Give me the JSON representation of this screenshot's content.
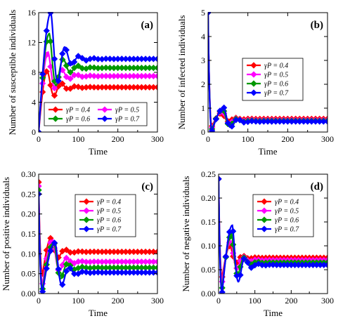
{
  "chart_data": [
    {
      "type": "line",
      "panel_label": "(a)",
      "xlabel": "Time",
      "ylabel": "Number of susceptible individuals",
      "xlim": [
        0,
        300
      ],
      "ylim": [
        0,
        16
      ],
      "xticks": [
        0,
        100,
        200,
        300
      ],
      "yticks": [
        0,
        4,
        8,
        12,
        16
      ],
      "legend_position": "bottom",
      "legend": [
        "γP = 0.4",
        "γP = 0.5",
        "γP = 0.6",
        "γP = 0.7"
      ],
      "series": [
        {
          "name": "γP = 0.4",
          "color": "#ff0000",
          "eq": 6.0,
          "peak": 8.2,
          "peak_t": 22,
          "trough": 5.0,
          "osc": 0.6
        },
        {
          "name": "γP = 0.5",
          "color": "#ff00ff",
          "eq": 7.5,
          "peak": 10.7,
          "peak_t": 24,
          "trough": 5.4,
          "osc": 0.75
        },
        {
          "name": "γP = 0.6",
          "color": "#009900",
          "eq": 8.6,
          "peak": 13.2,
          "peak_t": 27,
          "trough": 5.6,
          "osc": 0.95
        },
        {
          "name": "γP = 0.7",
          "color": "#0000ff",
          "eq": 9.8,
          "peak": 16.0,
          "peak_t": 31,
          "trough": 5.8,
          "osc": 1.2
        }
      ]
    },
    {
      "type": "line",
      "panel_label": "(b)",
      "xlabel": "Time",
      "ylabel": "Number of infected individuals",
      "xlim": [
        0,
        300
      ],
      "ylim": [
        0,
        5
      ],
      "xticks": [
        0,
        100,
        200,
        300
      ],
      "yticks": [
        0,
        1,
        2,
        3,
        4,
        5
      ],
      "legend_position": "center",
      "legend": [
        "γP = 0.4",
        "γP = 0.5",
        "γP = 0.6",
        "γP = 0.7"
      ],
      "series": [
        {
          "name": "γP = 0.4",
          "color": "#ff0000",
          "start": 5,
          "eq": 0.55,
          "trough": 0.25,
          "peak": 0.8,
          "peak_t": 35
        },
        {
          "name": "γP = 0.5",
          "color": "#ff00ff",
          "start": 5,
          "eq": 0.5,
          "trough": 0.18,
          "peak": 0.88,
          "peak_t": 37
        },
        {
          "name": "γP = 0.6",
          "color": "#009900",
          "start": 5,
          "eq": 0.47,
          "trough": 0.12,
          "peak": 0.95,
          "peak_t": 38
        },
        {
          "name": "γP = 0.7",
          "color": "#0000ff",
          "start": 5,
          "eq": 0.44,
          "trough": 0.05,
          "peak": 1.02,
          "peak_t": 40
        }
      ]
    },
    {
      "type": "line",
      "panel_label": "(c)",
      "xlabel": "Time",
      "ylabel": "Number of positive individuals",
      "xlim": [
        0,
        300
      ],
      "ylim": [
        0,
        0.3
      ],
      "xticks": [
        0,
        100,
        200,
        300
      ],
      "yticks": [
        0.0,
        0.05,
        0.1,
        0.15,
        0.2,
        0.25,
        0.3
      ],
      "ytick_labels": [
        "0.00",
        "0.05",
        "0.10",
        "0.15",
        "0.20",
        "0.25",
        "0.30"
      ],
      "legend_position": "top-right",
      "legend": [
        "γP = 0.4",
        "γP = 0.5",
        "γP = 0.6",
        "γP = 0.7"
      ],
      "series": [
        {
          "name": "γP = 0.4",
          "color": "#ff0000",
          "start": 0.28,
          "eq": 0.105,
          "trough": 0.05,
          "peak": 0.14,
          "peak_t": 32
        },
        {
          "name": "γP = 0.5",
          "color": "#ff00ff",
          "start": 0.27,
          "eq": 0.08,
          "trough": 0.025,
          "peak": 0.135,
          "peak_t": 36
        },
        {
          "name": "γP = 0.6",
          "color": "#009900",
          "start": 0.26,
          "eq": 0.065,
          "trough": 0.012,
          "peak": 0.13,
          "peak_t": 39
        },
        {
          "name": "γP = 0.7",
          "color": "#0000ff",
          "start": 0.25,
          "eq": 0.053,
          "trough": 0.005,
          "peak": 0.128,
          "peak_t": 42
        }
      ]
    },
    {
      "type": "line",
      "panel_label": "(d)",
      "xlabel": "Time",
      "ylabel": "Number of negative individuals",
      "xlim": [
        0,
        300
      ],
      "ylim": [
        0,
        0.25
      ],
      "xticks": [
        0,
        100,
        200,
        300
      ],
      "yticks": [
        0.0,
        0.05,
        0.1,
        0.15,
        0.2,
        0.25
      ],
      "ytick_labels": [
        "0.00",
        "0.05",
        "0.10",
        "0.15",
        "0.20",
        "0.25"
      ],
      "legend_position": "top-right",
      "legend": [
        "γP = 0.4",
        "γP = 0.5",
        "γP = 0.6",
        "γP = 0.7"
      ],
      "series": [
        {
          "name": "γP = 0.4",
          "color": "#ff0000",
          "start": 0.24,
          "eq": 0.075,
          "trough": 0.035,
          "peak": 0.1,
          "peak_t": 32
        },
        {
          "name": "γP = 0.5",
          "color": "#ff00ff",
          "start": 0.24,
          "eq": 0.07,
          "trough": 0.025,
          "peak": 0.11,
          "peak_t": 34
        },
        {
          "name": "γP = 0.6",
          "color": "#009900",
          "start": 0.24,
          "eq": 0.065,
          "trough": 0.012,
          "peak": 0.125,
          "peak_t": 36
        },
        {
          "name": "γP = 0.7",
          "color": "#0000ff",
          "start": 0.24,
          "eq": 0.06,
          "trough": 0.003,
          "peak": 0.143,
          "peak_t": 38
        }
      ]
    }
  ]
}
